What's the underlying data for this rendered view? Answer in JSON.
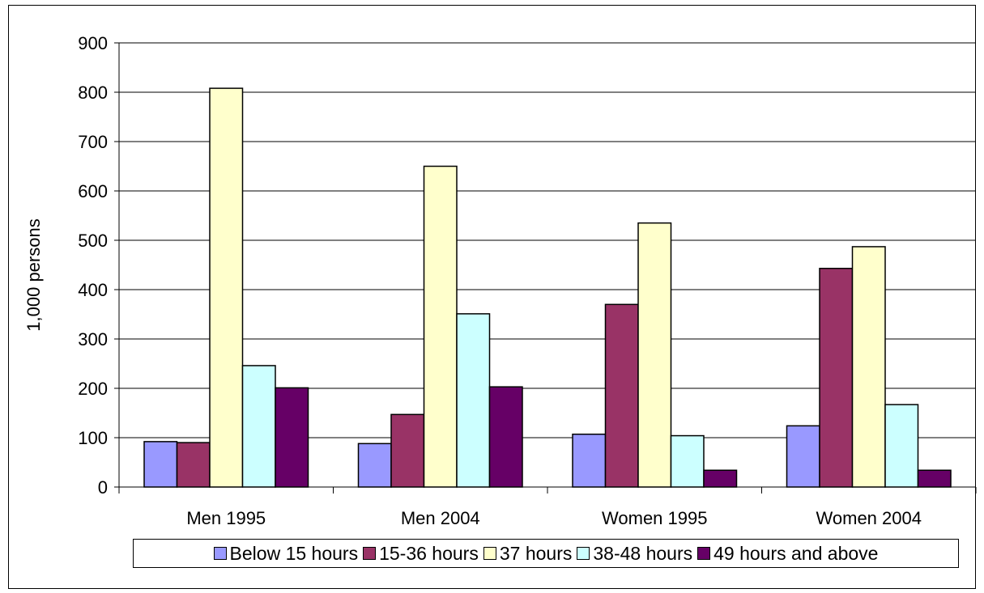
{
  "chart_data": {
    "type": "bar",
    "ylabel": "1,000 persons",
    "xlabel": "",
    "ylim": [
      0,
      900
    ],
    "yticks": [
      0,
      100,
      200,
      300,
      400,
      500,
      600,
      700,
      800,
      900
    ],
    "grid": true,
    "legend_position": "bottom",
    "categories": [
      "Men 1995",
      "Men 2004",
      "Women 1995",
      "Women 2004"
    ],
    "series": [
      {
        "name": "Below 15 hours",
        "color": "#9999ff",
        "values": [
          92,
          88,
          107,
          124
        ]
      },
      {
        "name": "15-36 hours",
        "color": "#993366",
        "values": [
          90,
          147,
          370,
          443
        ]
      },
      {
        "name": "37 hours",
        "color": "#ffffcc",
        "values": [
          808,
          650,
          535,
          487
        ]
      },
      {
        "name": "38-48 hours",
        "color": "#ccffff",
        "values": [
          246,
          351,
          104,
          167
        ]
      },
      {
        "name": "49 hours and above",
        "color": "#660066",
        "values": [
          201,
          203,
          34,
          34
        ]
      }
    ]
  }
}
